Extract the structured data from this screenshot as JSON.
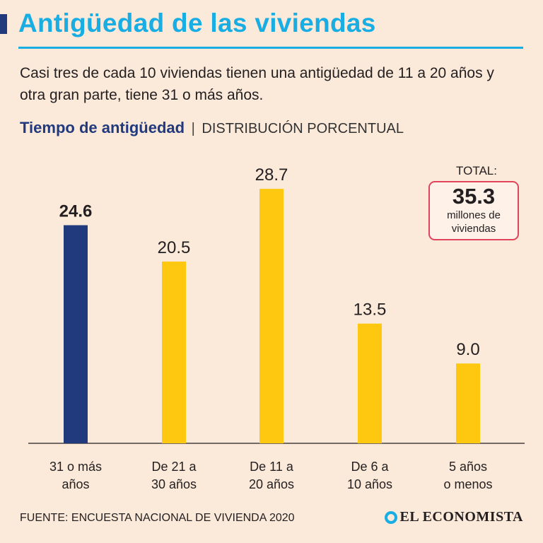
{
  "header": {
    "title": "Antigüedad de las viviendas",
    "subtitle": "Casi tres de cada 10 viviendas tienen una antigüedad de 11 a 20 años y otra gran parte, tiene 31 o más años."
  },
  "section": {
    "title": "Tiempo de antigüedad",
    "separator": "|",
    "subtitle": "DISTRIBUCIÓN PORCENTUAL"
  },
  "total": {
    "label": "TOTAL:",
    "value": "35.3",
    "unit_line1": "millones de",
    "unit_line2": "viviendas"
  },
  "footer": {
    "source": "FUENTE: ENCUESTA NACIONAL DE VIVIENDA 2020",
    "brand": "EL ECONOMISTA"
  },
  "colors": {
    "highlight": "#213a7e",
    "bar": "#fdc80f",
    "accent": "#19aee3",
    "total_border": "#e2435d"
  },
  "chart_data": {
    "type": "bar",
    "title": "Tiempo de antigüedad",
    "subtitle": "DISTRIBUCIÓN PORCENTUAL",
    "categories": [
      [
        "31 o más",
        "años"
      ],
      [
        "De 21 a",
        "30 años"
      ],
      [
        "De 11 a",
        "20 años"
      ],
      [
        "De 6 a",
        "10 años"
      ],
      [
        "5 años",
        "o menos"
      ]
    ],
    "values": [
      24.6,
      20.5,
      28.7,
      13.5,
      9.0
    ],
    "value_labels": [
      "24.6",
      "20.5",
      "28.7",
      "13.5",
      "9.0"
    ],
    "highlight_index": 0,
    "xlabel": "",
    "ylabel": "",
    "ylim": [
      0,
      30
    ],
    "grid": false
  }
}
